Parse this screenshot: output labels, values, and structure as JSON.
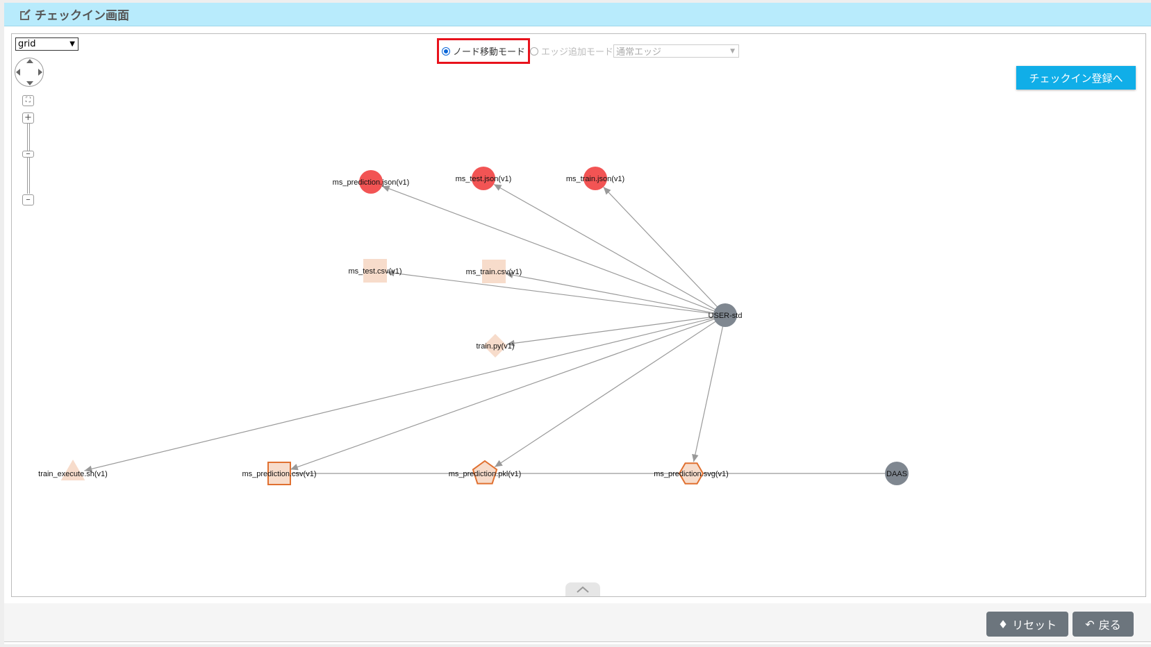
{
  "header": {
    "title": "チェックイン画面",
    "icon": "edit-icon"
  },
  "toolbar": {
    "layout_select": "grid",
    "mode_move": "ノード移動モード",
    "mode_edge": "エッジ追加モード",
    "edge_type": "通常エッジ",
    "mode_selected": "move",
    "checkin_button": "チェックイン登録へ"
  },
  "graph": {
    "nodes": [
      {
        "id": "pj",
        "label": "ms_prediction.json(v1)",
        "shape": "circle",
        "color": "#f25454"
      },
      {
        "id": "tj",
        "label": "ms_test.json(v1)",
        "shape": "circle",
        "color": "#f25454"
      },
      {
        "id": "trj",
        "label": "ms_train.json(v1)",
        "shape": "circle",
        "color": "#f25454"
      },
      {
        "id": "tc",
        "label": "ms_test.csv(v1)",
        "shape": "square",
        "color": "#f7dccb"
      },
      {
        "id": "trc",
        "label": "ms_train.csv(v1)",
        "shape": "square",
        "color": "#f7dccb"
      },
      {
        "id": "py",
        "label": "train.py(v1)",
        "shape": "diamond",
        "color": "#f7dccb"
      },
      {
        "id": "user",
        "label": "USER-std",
        "shape": "circle",
        "color": "#7f8790"
      },
      {
        "id": "sh",
        "label": "train_execute.sh(v1)",
        "shape": "triangle",
        "color": "#f7dccb"
      },
      {
        "id": "pc",
        "label": "ms_prediction.csv(v1)",
        "shape": "square-outlined",
        "color": "#f7dccb"
      },
      {
        "id": "pk",
        "label": "ms_prediction.pkl(v1)",
        "shape": "pentagon",
        "color": "#f7dccb"
      },
      {
        "id": "ps",
        "label": "ms_prediction.svg(v1)",
        "shape": "hexagon",
        "color": "#f7dccb"
      },
      {
        "id": "daas",
        "label": "DAAS",
        "shape": "circle",
        "color": "#7f8790"
      }
    ],
    "edges": [
      [
        "user",
        "pj",
        true
      ],
      [
        "user",
        "tj",
        true
      ],
      [
        "user",
        "trj",
        true
      ],
      [
        "user",
        "tc",
        true
      ],
      [
        "user",
        "trc",
        true
      ],
      [
        "user",
        "py",
        true
      ],
      [
        "user",
        "sh",
        true
      ],
      [
        "user",
        "pc",
        true
      ],
      [
        "user",
        "pk",
        true
      ],
      [
        "user",
        "ps",
        true
      ],
      [
        "pc",
        "pk",
        false
      ],
      [
        "pk",
        "ps",
        false
      ],
      [
        "ps",
        "daas",
        false
      ]
    ]
  },
  "footer": {
    "reset": "リセット",
    "back": "戻る"
  }
}
